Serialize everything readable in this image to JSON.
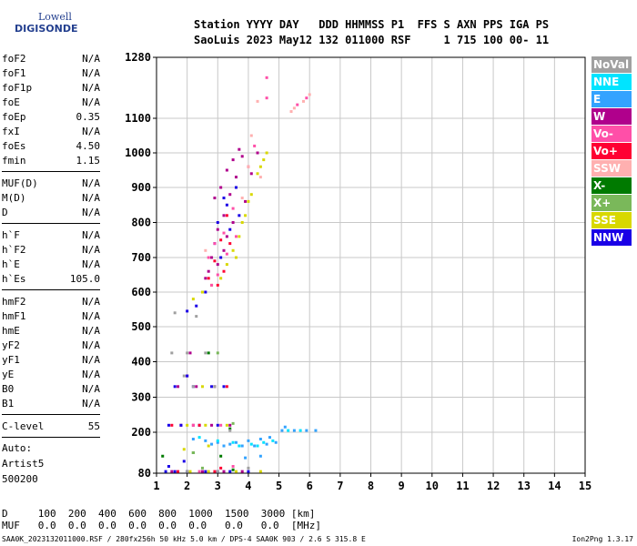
{
  "logo": {
    "line1": "Lowell",
    "line2": "DIGISONDE"
  },
  "header": {
    "line1": "Station YYYY DAY   DDD HHMMSS P1  FFS S AXN PPS IGA PS",
    "line2": "SaoLuis 2023 May12 132 011000 RSF     1 715 100 00- 11"
  },
  "params": {
    "group1": [
      {
        "name": "foF2",
        "value": "N/A"
      },
      {
        "name": "foF1",
        "value": "N/A"
      },
      {
        "name": "foF1p",
        "value": "N/A"
      },
      {
        "name": "foE",
        "value": "N/A"
      },
      {
        "name": "foEp",
        "value": "0.35"
      },
      {
        "name": "fxI",
        "value": "N/A"
      },
      {
        "name": "foEs",
        "value": "4.50"
      },
      {
        "name": "fmin",
        "value": "1.15"
      }
    ],
    "group2": [
      {
        "name": "MUF(D)",
        "value": "N/A"
      },
      {
        "name": "M(D)",
        "value": "N/A"
      },
      {
        "name": "D",
        "value": "N/A"
      }
    ],
    "group3": [
      {
        "name": "h`F",
        "value": "N/A"
      },
      {
        "name": "h`F2",
        "value": "N/A"
      },
      {
        "name": "h`E",
        "value": "N/A"
      },
      {
        "name": "h`Es",
        "value": "105.0"
      }
    ],
    "group4": [
      {
        "name": "hmF2",
        "value": "N/A"
      },
      {
        "name": "hmF1",
        "value": "N/A"
      },
      {
        "name": "hmE",
        "value": "N/A"
      },
      {
        "name": "yF2",
        "value": "N/A"
      },
      {
        "name": "yF1",
        "value": "N/A"
      },
      {
        "name": "yE",
        "value": "N/A"
      },
      {
        "name": "B0",
        "value": "N/A"
      },
      {
        "name": "B1",
        "value": "N/A"
      }
    ],
    "clevel": {
      "name": "C-level",
      "value": "55"
    },
    "auto": [
      "Auto:",
      "Artist5",
      "500200"
    ]
  },
  "legend": [
    {
      "label": "NoVal",
      "color": "#a0a0a0"
    },
    {
      "label": "NNE",
      "color": "#00e4ff"
    },
    {
      "label": "E",
      "color": "#33a3ff"
    },
    {
      "label": "W",
      "color": "#b0008c"
    },
    {
      "label": "Vo-",
      "color": "#ff4fa8"
    },
    {
      "label": "Vo+",
      "color": "#ff0033"
    },
    {
      "label": "SSW",
      "color": "#ffb0b0"
    },
    {
      "label": "X-",
      "color": "#007a00"
    },
    {
      "label": "X+",
      "color": "#7ab85a"
    },
    {
      "label": "SSE",
      "color": "#d8d800"
    },
    {
      "label": "NNW",
      "color": "#1a00e6"
    }
  ],
  "footer": {
    "d_row": "D     100  200  400  600  800  1000  1500  3000 [km]",
    "muf_row": "MUF   0.0  0.0  0.0  0.0  0.0  0.0   0.0   0.0  [MHz]",
    "file_line": "SAA0K_2023132011000.RSF / 280fx256h 50 kHz 5.0 km / DPS-4 SAA0K 903 / 2.6 S 315.8 E",
    "version": "Ion2Png 1.3.17"
  },
  "chart_data": {
    "type": "scatter",
    "x_range": [
      1,
      15
    ],
    "y_range": [
      80,
      1280
    ],
    "x_ticks": [
      1,
      2,
      3,
      4,
      5,
      6,
      7,
      8,
      9,
      10,
      11,
      12,
      13,
      14,
      15
    ],
    "y_ticks": [
      80,
      200,
      300,
      400,
      500,
      600,
      700,
      800,
      900,
      1000,
      1100,
      1280
    ],
    "grid": true,
    "legend_position": "right",
    "series": [
      {
        "name": "W",
        "color": "#b0008c",
        "points": [
          [
            2.9,
            870
          ],
          [
            3.1,
            900
          ],
          [
            3.3,
            950
          ],
          [
            3.0,
            780
          ],
          [
            3.2,
            820
          ],
          [
            2.8,
            700
          ],
          [
            3.4,
            880
          ],
          [
            3.6,
            930
          ],
          [
            3.5,
            980
          ],
          [
            3.8,
            990
          ],
          [
            3.7,
            1010
          ],
          [
            2.7,
            660
          ],
          [
            3.0,
            680
          ],
          [
            3.3,
            760
          ],
          [
            3.9,
            860
          ],
          [
            4.1,
            940
          ],
          [
            4.3,
            1000
          ],
          [
            2.6,
            640
          ],
          [
            3.2,
            720
          ],
          [
            3.5,
            800
          ],
          [
            1.8,
            220
          ],
          [
            2.2,
            220
          ],
          [
            2.8,
            220
          ],
          [
            3.4,
            220
          ],
          [
            1.7,
            330
          ],
          [
            2.3,
            330
          ],
          [
            2.9,
            330
          ],
          [
            1.5,
            85
          ],
          [
            2.5,
            85
          ],
          [
            3.2,
            85
          ],
          [
            3.8,
            85
          ],
          [
            2.0,
            360
          ],
          [
            2.1,
            425
          ]
        ]
      },
      {
        "name": "NNW",
        "color": "#1a00e6",
        "points": [
          [
            3.0,
            800
          ],
          [
            3.3,
            850
          ],
          [
            2.9,
            740
          ],
          [
            3.1,
            700
          ],
          [
            3.6,
            900
          ],
          [
            3.4,
            780
          ],
          [
            2.6,
            600
          ],
          [
            2.3,
            560
          ],
          [
            2.0,
            545
          ],
          [
            3.2,
            870
          ],
          [
            3.7,
            820
          ],
          [
            1.4,
            220
          ],
          [
            1.8,
            220
          ],
          [
            2.4,
            220
          ],
          [
            3.0,
            220
          ],
          [
            1.6,
            330
          ],
          [
            2.2,
            330
          ],
          [
            2.8,
            330
          ],
          [
            3.2,
            330
          ],
          [
            1.3,
            85
          ],
          [
            1.6,
            85
          ],
          [
            2.0,
            85
          ],
          [
            2.6,
            85
          ],
          [
            3.0,
            85
          ],
          [
            3.4,
            85
          ],
          [
            4.0,
            85
          ],
          [
            1.4,
            100
          ],
          [
            1.9,
            115
          ],
          [
            2.0,
            360
          ]
        ]
      },
      {
        "name": "SSE",
        "color": "#d8d800",
        "points": [
          [
            3.5,
            720
          ],
          [
            3.7,
            760
          ],
          [
            3.9,
            820
          ],
          [
            4.1,
            880
          ],
          [
            4.3,
            940
          ],
          [
            4.5,
            980
          ],
          [
            3.3,
            680
          ],
          [
            3.1,
            640
          ],
          [
            2.8,
            620
          ],
          [
            2.5,
            600
          ],
          [
            2.2,
            580
          ],
          [
            3.6,
            700
          ],
          [
            3.8,
            800
          ],
          [
            4.0,
            860
          ],
          [
            4.4,
            960
          ],
          [
            4.6,
            1000
          ],
          [
            2.0,
            220
          ],
          [
            2.6,
            220
          ],
          [
            3.3,
            220
          ],
          [
            2.5,
            330
          ],
          [
            2.1,
            85
          ],
          [
            2.7,
            85
          ],
          [
            3.6,
            85
          ],
          [
            1.9,
            150
          ],
          [
            2.7,
            160
          ],
          [
            4.4,
            85
          ]
        ]
      },
      {
        "name": "Vo-",
        "color": "#ff4fa8",
        "points": [
          [
            2.9,
            740
          ],
          [
            3.2,
            770
          ],
          [
            3.0,
            650
          ],
          [
            2.8,
            620
          ],
          [
            3.5,
            840
          ],
          [
            3.3,
            710
          ],
          [
            4.0,
            960
          ],
          [
            2.7,
            700
          ],
          [
            3.6,
            760
          ],
          [
            4.2,
            1020
          ],
          [
            4.6,
            1160
          ],
          [
            5.6,
            1140
          ],
          [
            5.9,
            1160
          ],
          [
            4.6,
            1220
          ],
          [
            2.4,
            85
          ],
          [
            3.5,
            100
          ],
          [
            2.2,
            220
          ],
          [
            3.1,
            220
          ]
        ]
      },
      {
        "name": "Vo+",
        "color": "#ff0033",
        "points": [
          [
            3.1,
            750
          ],
          [
            2.9,
            690
          ],
          [
            3.3,
            820
          ],
          [
            3.0,
            620
          ],
          [
            3.4,
            740
          ],
          [
            2.7,
            640
          ],
          [
            3.2,
            660
          ],
          [
            2.4,
            220
          ],
          [
            1.5,
            220
          ],
          [
            3.3,
            330
          ],
          [
            1.7,
            85
          ],
          [
            2.9,
            85
          ],
          [
            3.1,
            95
          ]
        ]
      },
      {
        "name": "E",
        "color": "#33a3ff",
        "points": [
          [
            2.2,
            180
          ],
          [
            2.6,
            175
          ],
          [
            3.0,
            170
          ],
          [
            3.4,
            165
          ],
          [
            3.8,
            160
          ],
          [
            4.2,
            160
          ],
          [
            4.6,
            165
          ],
          [
            4.9,
            170
          ],
          [
            3.2,
            160
          ],
          [
            3.6,
            170
          ],
          [
            4.0,
            175
          ],
          [
            4.4,
            180
          ],
          [
            4.7,
            185
          ],
          [
            5.1,
            205
          ],
          [
            5.5,
            205
          ],
          [
            5.9,
            205
          ],
          [
            6.2,
            205
          ],
          [
            3.9,
            125
          ],
          [
            4.4,
            130
          ],
          [
            5.2,
            215
          ],
          [
            2.8,
            165
          ]
        ]
      },
      {
        "name": "NNE",
        "color": "#00e4ff",
        "points": [
          [
            3.0,
            175
          ],
          [
            3.5,
            170
          ],
          [
            4.1,
            165
          ],
          [
            4.5,
            170
          ],
          [
            4.8,
            175
          ],
          [
            5.3,
            205
          ],
          [
            5.7,
            205
          ],
          [
            4.3,
            160
          ],
          [
            2.4,
            185
          ],
          [
            3.7,
            160
          ]
        ]
      },
      {
        "name": "SSW",
        "color": "#ffb0b0",
        "points": [
          [
            5.4,
            1120
          ],
          [
            5.8,
            1150
          ],
          [
            6.0,
            1170
          ],
          [
            5.5,
            1130
          ],
          [
            4.3,
            1150
          ],
          [
            4.0,
            960
          ],
          [
            4.4,
            930
          ],
          [
            2.6,
            720
          ],
          [
            3.8,
            870
          ],
          [
            4.1,
            1050
          ]
        ]
      },
      {
        "name": "X-",
        "color": "#007a00",
        "points": [
          [
            2.2,
            140
          ],
          [
            3.1,
            130
          ],
          [
            3.4,
            210
          ],
          [
            2.7,
            425
          ],
          [
            1.2,
            130
          ],
          [
            3.5,
            90
          ]
        ]
      },
      {
        "name": "X+",
        "color": "#7ab85a",
        "points": [
          [
            3.0,
            425
          ],
          [
            2.5,
            95
          ],
          [
            3.5,
            225
          ],
          [
            2.2,
            140
          ]
        ]
      },
      {
        "name": "NoVal",
        "color": "#a0a0a0",
        "points": [
          [
            1.5,
            425
          ],
          [
            2.0,
            425
          ],
          [
            2.6,
            425
          ],
          [
            2.2,
            330
          ],
          [
            2.9,
            330
          ],
          [
            2.0,
            85
          ],
          [
            3.0,
            85
          ],
          [
            3.4,
            205
          ],
          [
            4.0,
            95
          ],
          [
            1.9,
            360
          ],
          [
            1.6,
            540
          ],
          [
            2.3,
            530
          ]
        ]
      }
    ]
  }
}
